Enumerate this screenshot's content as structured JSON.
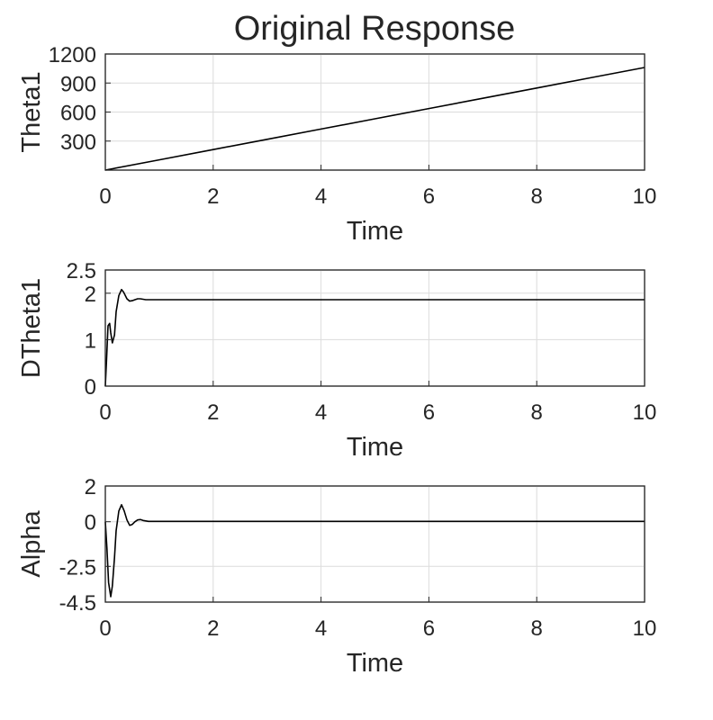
{
  "figure": {
    "title": "Original Response"
  },
  "chart_data": [
    {
      "type": "line",
      "title": "Original Response",
      "xlabel": "Time",
      "ylabel": "Theta1",
      "xlim": [
        0,
        10
      ],
      "ylim": [
        0,
        1200
      ],
      "xticks": [
        0,
        2,
        4,
        6,
        8,
        10
      ],
      "yticks": [
        300,
        600,
        900,
        1200
      ],
      "grid": true,
      "series": [
        {
          "x": [
            0,
            1,
            2,
            3,
            4,
            5,
            6,
            7,
            8,
            9,
            10
          ],
          "y": [
            0,
            106,
            212,
            318,
            424,
            530,
            636,
            742,
            848,
            954,
            1060
          ]
        }
      ]
    },
    {
      "type": "line",
      "xlabel": "Time",
      "ylabel": "DTheta1",
      "xlim": [
        0,
        10
      ],
      "ylim": [
        0,
        2.5
      ],
      "xticks": [
        0,
        2,
        4,
        6,
        8,
        10
      ],
      "yticks": [
        0,
        1,
        2,
        2.5
      ],
      "grid": true,
      "series": [
        {
          "x": [
            0,
            0.02,
            0.05,
            0.08,
            0.1,
            0.13,
            0.17,
            0.2,
            0.25,
            0.3,
            0.34,
            0.4,
            0.45,
            0.5,
            0.55,
            0.6,
            0.65,
            0.7,
            0.75,
            0.8,
            1,
            2,
            4,
            6,
            8,
            10
          ],
          "y": [
            0,
            0.5,
            1.3,
            1.35,
            1.15,
            0.93,
            1.1,
            1.6,
            1.95,
            2.08,
            2.02,
            1.88,
            1.83,
            1.84,
            1.86,
            1.88,
            1.88,
            1.87,
            1.86,
            1.86,
            1.86,
            1.86,
            1.86,
            1.86,
            1.86,
            1.86
          ]
        }
      ]
    },
    {
      "type": "line",
      "xlabel": "Time",
      "ylabel": "Alpha",
      "xlim": [
        0,
        10
      ],
      "ylim": [
        -4.5,
        2
      ],
      "xticks": [
        0,
        2,
        4,
        6,
        8,
        10
      ],
      "yticks": [
        -4.5,
        -2.5,
        0,
        2
      ],
      "grid": true,
      "series": [
        {
          "x": [
            0,
            0.03,
            0.06,
            0.1,
            0.13,
            0.17,
            0.2,
            0.25,
            0.3,
            0.35,
            0.4,
            0.45,
            0.5,
            0.55,
            0.6,
            0.65,
            0.7,
            0.8,
            1,
            2,
            4,
            6,
            8,
            10
          ],
          "y": [
            0,
            -1.5,
            -3.4,
            -4.2,
            -3.6,
            -2.0,
            -0.5,
            0.6,
            0.95,
            0.6,
            0.1,
            -0.2,
            -0.15,
            0.0,
            0.1,
            0.12,
            0.07,
            0.02,
            0.02,
            0.02,
            0.02,
            0.02,
            0.02,
            0.02
          ]
        }
      ]
    }
  ]
}
